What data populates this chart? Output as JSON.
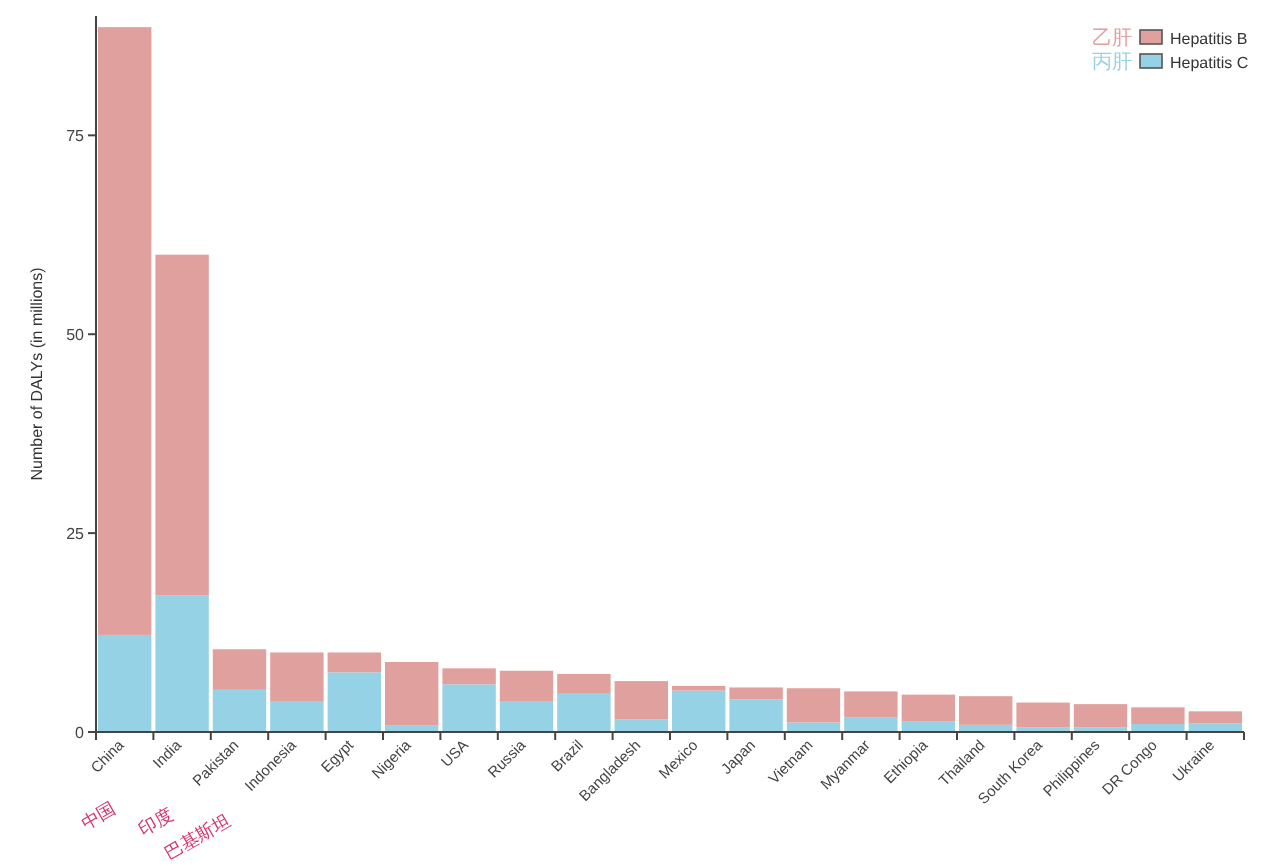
{
  "chart_data": {
    "type": "bar",
    "stacked": true,
    "ylabel": "Number of DALYs (in millions)",
    "categories": [
      "China",
      "India",
      "Pakistan",
      "Indonesia",
      "Egypt",
      "Nigeria",
      "USA",
      "Russia",
      "Brazil",
      "Bangladesh",
      "Mexico",
      "Japan",
      "Vietnam",
      "Myanmar",
      "Ethiopia",
      "Thailand",
      "South Korea",
      "Philippines",
      "DR Congo",
      "Ukraine"
    ],
    "series": [
      {
        "name": "Hepatitis C",
        "color": "#96d2e6",
        "values": [
          12.2,
          17.2,
          5.3,
          3.8,
          7.5,
          0.8,
          6.0,
          3.8,
          4.8,
          1.6,
          5.2,
          4.1,
          1.2,
          1.8,
          1.3,
          0.9,
          0.6,
          0.6,
          1.0,
          1.1
        ]
      },
      {
        "name": "Hepatitis B",
        "color": "#e0a09e",
        "values": [
          76.4,
          42.8,
          5.1,
          6.2,
          2.5,
          8.0,
          2.0,
          3.9,
          2.5,
          4.8,
          0.6,
          1.5,
          4.3,
          3.3,
          3.4,
          3.6,
          3.1,
          2.9,
          2.1,
          1.5
        ]
      }
    ],
    "ylim": [
      0,
      90
    ],
    "yticks": [
      0,
      25,
      50,
      75
    ],
    "grid": false,
    "legend": "top right",
    "annotations": [
      "乙肝",
      "丙肝",
      "中国",
      "印度",
      "巴基斯坦"
    ]
  }
}
